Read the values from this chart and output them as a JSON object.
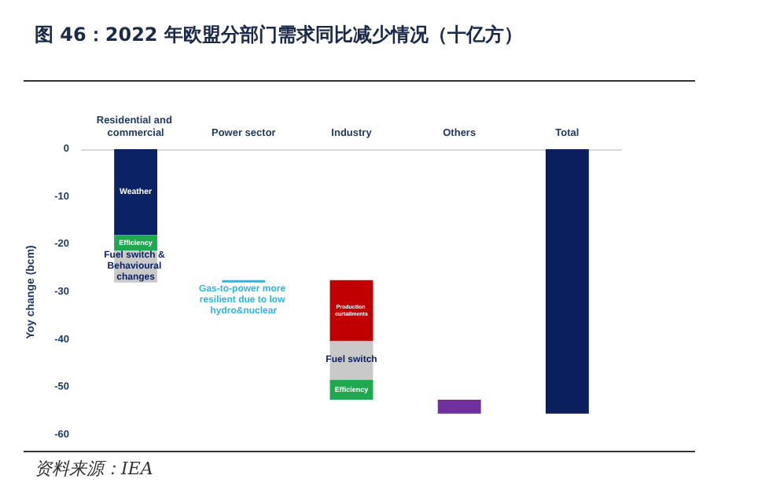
{
  "chart_data": {
    "type": "bar",
    "title": "图 46：2022 年欧盟分部门需求同比减少情况（十亿方）",
    "ylabel": "Yoy change (bcm)",
    "categories": [
      "Residential and commercial",
      "Power sector",
      "Industry",
      "Others",
      "Total"
    ],
    "ylim": [
      -60,
      0
    ],
    "yticks": [
      0,
      -10,
      -20,
      -30,
      -40,
      -50,
      -60
    ],
    "grid": false,
    "legend": false,
    "series": [
      {
        "name": "Weather",
        "color": "#0b2265",
        "values": [
          -18,
          null,
          null,
          null,
          null
        ],
        "base": [
          0,
          null,
          null,
          null,
          null
        ]
      },
      {
        "name": "Efficiency",
        "color": "#1ea84f",
        "values": [
          -3.3,
          null,
          null,
          null,
          null
        ],
        "base": [
          -18,
          null,
          null,
          null,
          null
        ]
      },
      {
        "name": "Fuel switch & Behavioural changes",
        "color": "#c9c9c9",
        "values": [
          -6.7,
          null,
          null,
          null,
          null
        ],
        "base": [
          -21.3,
          null,
          null,
          null,
          null
        ]
      },
      {
        "name": "Gas-to-power more resilient due to low hydro&nuclear",
        "color": "#2bb6e6",
        "values": [
          null,
          -0.5,
          null,
          null,
          null
        ],
        "base": [
          null,
          -27.5,
          null,
          null,
          null
        ]
      },
      {
        "name": "Production curtailments",
        "color": "#c00000",
        "values": [
          null,
          null,
          -12.8,
          null,
          null
        ],
        "base": [
          null,
          null,
          -27.5,
          null,
          null
        ]
      },
      {
        "name": "Fuel switch",
        "color": "#c9c9c9",
        "values": [
          null,
          null,
          -8.1,
          null,
          null
        ],
        "base": [
          null,
          null,
          -40.3,
          null,
          null
        ]
      },
      {
        "name": "Efficiency",
        "color": "#1ea84f",
        "values": [
          null,
          null,
          -4.2,
          null,
          null
        ],
        "base": [
          null,
          null,
          -48.4,
          null,
          null
        ]
      },
      {
        "color": "#7030a0",
        "values": [
          null,
          null,
          null,
          -2.9,
          null
        ],
        "base": [
          null,
          null,
          null,
          -52.6,
          null
        ]
      },
      {
        "color": "#0b1f5e",
        "values": [
          null,
          null,
          null,
          null,
          -55.5
        ],
        "base": [
          null,
          null,
          null,
          null,
          0
        ]
      }
    ],
    "annotations": [
      "资料来源：IEA"
    ]
  }
}
